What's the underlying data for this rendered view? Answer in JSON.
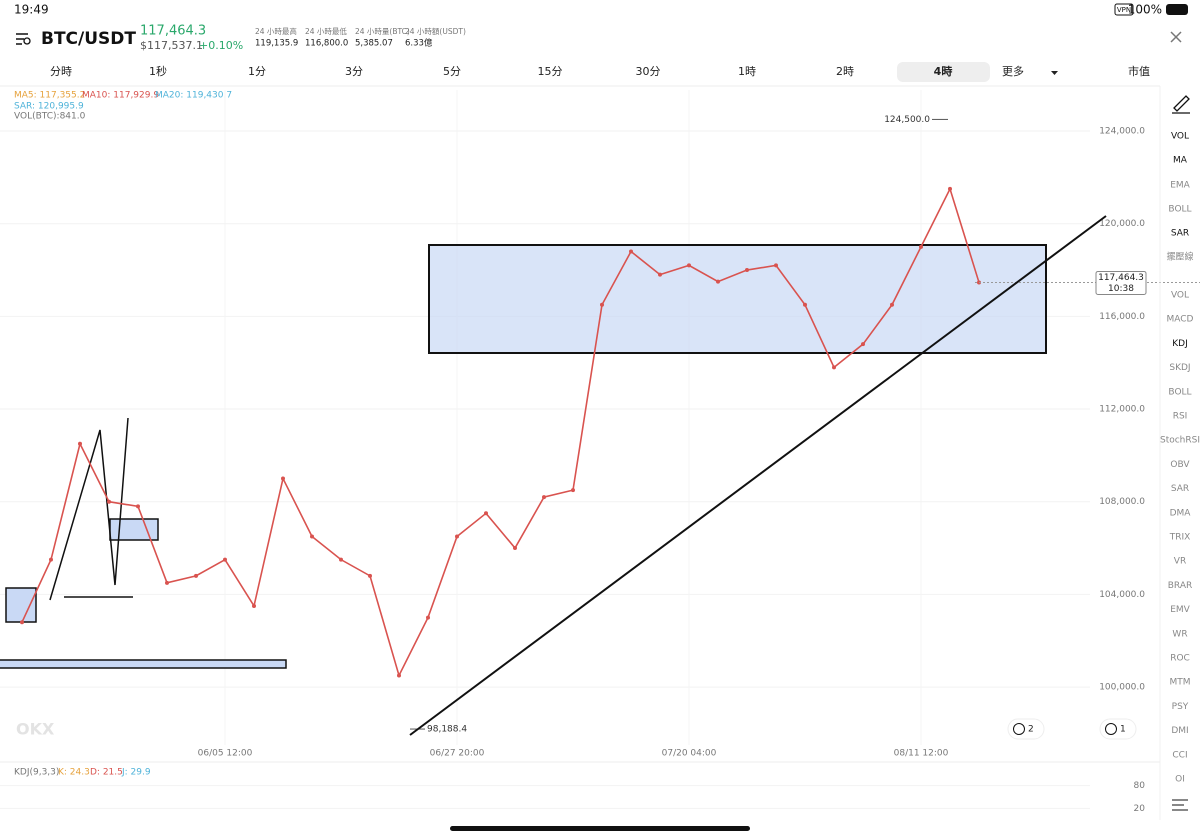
{
  "status_bar": {
    "time": "19:49",
    "vpn": "VPN",
    "battery": "100%"
  },
  "header": {
    "pair": "BTC/USDT",
    "price": "117,464.3",
    "usd_price": "$117,537.1",
    "change": "+0.10%",
    "stats": [
      {
        "label": "24 小時最高",
        "value": "119,135.9"
      },
      {
        "label": "24 小時最低",
        "value": "116,800.0"
      },
      {
        "label": "24 小時量(BTC)",
        "value": "5,385.07"
      },
      {
        "label": "24 小時額(USDT)",
        "value": "6.33億"
      }
    ]
  },
  "tabs": [
    "分時",
    "1秒",
    "1分",
    "3分",
    "5分",
    "15分",
    "30分",
    "1時",
    "2時",
    "4時",
    "更多",
    "市值"
  ],
  "selected_tab": "4時",
  "indicators": {
    "ma5": "MA5: 117,355.2",
    "ma10": "MA10: 117,929.9",
    "ma20": "MA20: 119,430.7",
    "sar": "SAR: 120,995.9",
    "vol": "VOL(BTC):841.0"
  },
  "chart_data": {
    "type": "line",
    "color": "#d9534f",
    "categories": [
      null,
      null,
      null,
      null,
      null,
      null,
      null,
      "06/05 12:00",
      null,
      null,
      null,
      null,
      null,
      null,
      null,
      "06/27 20:00",
      null,
      null,
      null,
      null,
      null,
      null,
      null,
      "07/20 04:00",
      null,
      null,
      null,
      null,
      null,
      null,
      null,
      "08/11 12:00",
      null,
      null
    ],
    "values": [
      102800,
      105500,
      110500,
      108000,
      107800,
      104500,
      104800,
      105500,
      103500,
      109000,
      106500,
      105500,
      104800,
      100500,
      103000,
      106500,
      107500,
      106000,
      108200,
      108500,
      116500,
      118800,
      117800,
      118200,
      117500,
      118000,
      118200,
      116500,
      113800,
      114800,
      116500,
      119000,
      121500,
      117464.3
    ],
    "ylim": [
      97500,
      125770
    ],
    "yticks": [
      {
        "value": 124000,
        "label": "124,000.0"
      },
      {
        "value": 120000,
        "label": "120,000.0"
      },
      {
        "value": 116000,
        "label": "116,000.0"
      },
      {
        "value": 112000,
        "label": "112,000.0"
      },
      {
        "value": 108000,
        "label": "108,000.0"
      },
      {
        "value": 104000,
        "label": "104,000.0"
      },
      {
        "value": 100000,
        "label": "100,000.0"
      }
    ],
    "grid": true,
    "high": {
      "value": 124500,
      "label": "124,500.0"
    },
    "low": {
      "value": 98188.4,
      "label": "98,188.4"
    },
    "current": {
      "value": 117464.3,
      "label": "117,464.3"
    },
    "countdown": "10:38"
  },
  "kdj": {
    "title": "KDJ(9,3,3)",
    "k": "K: 24.3",
    "d": "D: 21.5",
    "j": "J: 29.9",
    "ylim": [
      0,
      100
    ],
    "yticks": [
      80,
      20
    ]
  },
  "sidebar_top": [
    "VOL",
    "MA",
    "EMA",
    "BOLL",
    "SAR",
    "擺壓線"
  ],
  "sidebar_bottom": [
    "VOL",
    "MACD",
    "KDJ",
    "SKDJ",
    "BOLL",
    "RSI",
    "StochRSI",
    "OBV",
    "SAR",
    "DMA",
    "TRIX",
    "VR",
    "BRAR",
    "EMV",
    "WR",
    "ROC",
    "MTM",
    "PSY",
    "DMI",
    "CCI",
    "OI"
  ],
  "badges": [
    "2",
    "1"
  ]
}
